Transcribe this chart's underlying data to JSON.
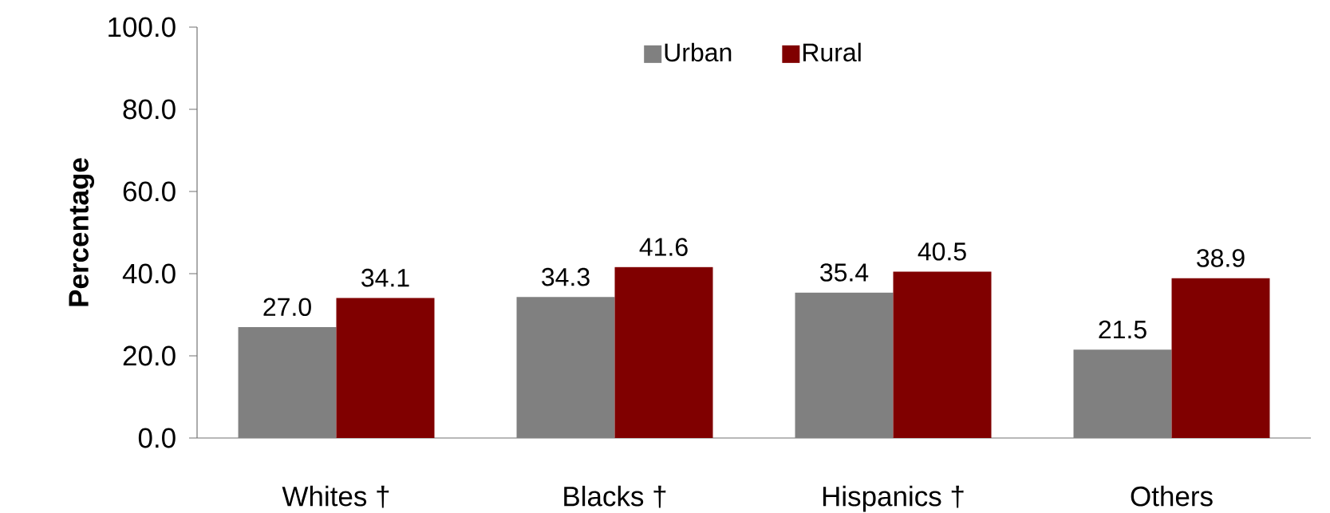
{
  "chart_data": {
    "type": "bar",
    "ylabel": "Percentage",
    "categories": [
      "Whites †",
      "Blacks †",
      "Hispanics †",
      "Others"
    ],
    "series": [
      {
        "name": "Urban",
        "color": "#808080",
        "values": [
          27.0,
          34.3,
          35.4,
          21.5
        ],
        "value_labels": [
          "27.0",
          "34.3",
          "35.4",
          "21.5"
        ]
      },
      {
        "name": "Rural",
        "color": "#800000",
        "values": [
          34.1,
          41.6,
          40.5,
          38.9
        ],
        "value_labels": [
          "34.1",
          "41.6",
          "40.5",
          "38.9"
        ]
      }
    ],
    "ylim": [
      0,
      100
    ],
    "yticks": [
      {
        "value": 0,
        "label": "0.0"
      },
      {
        "value": 20,
        "label": "20.0"
      },
      {
        "value": 40,
        "label": "40.0"
      },
      {
        "value": 60,
        "label": "60.0"
      },
      {
        "value": 80,
        "label": "80.0"
      },
      {
        "value": 100,
        "label": "100.0"
      }
    ],
    "legend": "top",
    "grid": false
  }
}
